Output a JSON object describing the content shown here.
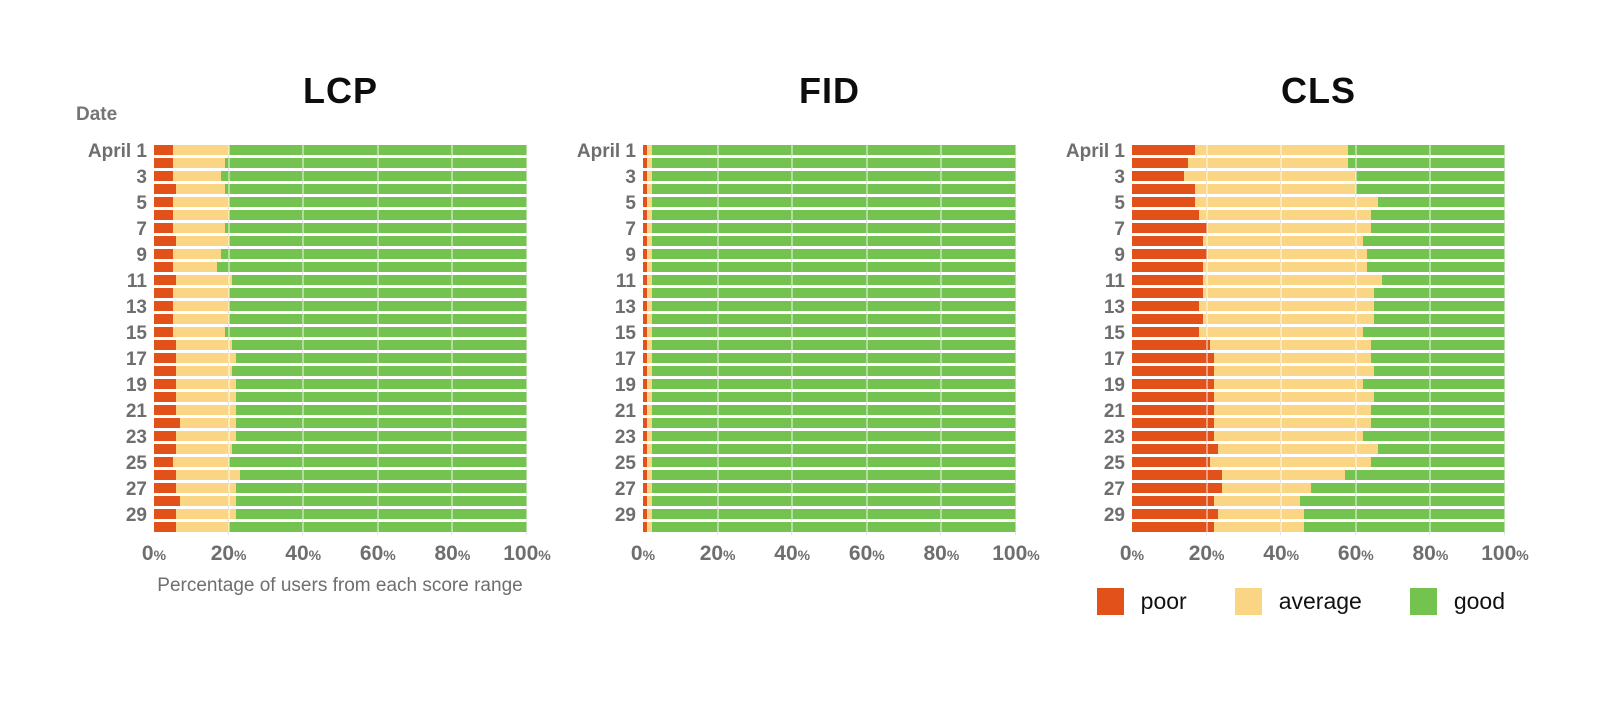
{
  "colors": {
    "poor": "#E2511A",
    "average": "#F9D584",
    "good": "#74C24F",
    "gridline": "#cccccc"
  },
  "legend": {
    "items": [
      {
        "label": "poor",
        "key": "poor"
      },
      {
        "label": "average",
        "key": "average"
      },
      {
        "label": "good",
        "key": "good"
      }
    ]
  },
  "chart_data": [
    {
      "type": "bar",
      "stacked": true,
      "horizontal": true,
      "units": "percent",
      "title": "LCP",
      "ylabel": "Date",
      "xlabel": "Percentage of users from each score range",
      "xrange": [
        0,
        100
      ],
      "xticks": [
        "0%",
        "20%",
        "40%",
        "60%",
        "80%",
        "100%"
      ],
      "yticks": [
        "April 1",
        "",
        "3",
        "",
        "5",
        "",
        "7",
        "",
        "9",
        "",
        "11",
        "",
        "13",
        "",
        "15",
        "",
        "17",
        "",
        "19",
        "",
        "21",
        "",
        "23",
        "",
        "25",
        "",
        "27",
        "",
        "29",
        ""
      ],
      "series": [
        {
          "name": "poor",
          "values": [
            5,
            5,
            5,
            6,
            5,
            5,
            5,
            6,
            5,
            5,
            6,
            5,
            5,
            5,
            5,
            6,
            6,
            6,
            6,
            6,
            6,
            7,
            6,
            6,
            5,
            6,
            6,
            7,
            6,
            6
          ]
        },
        {
          "name": "average",
          "values": [
            15,
            14,
            13,
            13,
            15,
            15,
            14,
            14,
            13,
            12,
            15,
            15,
            15,
            15,
            14,
            15,
            16,
            15,
            16,
            16,
            16,
            15,
            16,
            15,
            15,
            17,
            16,
            15,
            16,
            14
          ]
        },
        {
          "name": "good",
          "values": [
            80,
            81,
            82,
            81,
            80,
            80,
            81,
            80,
            82,
            83,
            79,
            80,
            80,
            80,
            81,
            79,
            78,
            79,
            78,
            78,
            78,
            78,
            78,
            79,
            80,
            77,
            78,
            78,
            78,
            80
          ]
        }
      ]
    },
    {
      "type": "bar",
      "stacked": true,
      "horizontal": true,
      "units": "percent",
      "title": "FID",
      "ylabel": "",
      "xlabel": "",
      "xrange": [
        0,
        100
      ],
      "xticks": [
        "0%",
        "20%",
        "40%",
        "60%",
        "80%",
        "100%"
      ],
      "yticks": [
        "April 1",
        "",
        "3",
        "",
        "5",
        "",
        "7",
        "",
        "9",
        "",
        "11",
        "",
        "13",
        "",
        "15",
        "",
        "17",
        "",
        "19",
        "",
        "21",
        "",
        "23",
        "",
        "25",
        "",
        "27",
        "",
        "29",
        ""
      ],
      "series": [
        {
          "name": "poor",
          "values": [
            1,
            1,
            1,
            1,
            1,
            1,
            1,
            1,
            1,
            1,
            1,
            1,
            1,
            1,
            1,
            1,
            1,
            1,
            1,
            1,
            1,
            1,
            1,
            1,
            1,
            1,
            1,
            1,
            1,
            1
          ]
        },
        {
          "name": "average",
          "values": [
            1.5,
            1.5,
            1.5,
            1.5,
            1.5,
            1.5,
            1.5,
            1.5,
            1.5,
            1.5,
            1.5,
            1.5,
            1.5,
            1.5,
            1.5,
            1.5,
            1.5,
            1.5,
            1.5,
            1.5,
            1.5,
            1.5,
            1.5,
            1.5,
            1.5,
            1.5,
            1.5,
            1.5,
            1.5,
            1.5
          ]
        },
        {
          "name": "good",
          "values": [
            97.5,
            97.5,
            97.5,
            97.5,
            97.5,
            97.5,
            97.5,
            97.5,
            97.5,
            97.5,
            97.5,
            97.5,
            97.5,
            97.5,
            97.5,
            97.5,
            97.5,
            97.5,
            97.5,
            97.5,
            97.5,
            97.5,
            97.5,
            97.5,
            97.5,
            97.5,
            97.5,
            97.5,
            97.5,
            97.5
          ]
        }
      ]
    },
    {
      "type": "bar",
      "stacked": true,
      "horizontal": true,
      "units": "percent",
      "title": "CLS",
      "ylabel": "",
      "xlabel": "",
      "xrange": [
        0,
        100
      ],
      "xticks": [
        "0%",
        "20%",
        "40%",
        "60%",
        "80%",
        "100%"
      ],
      "yticks": [
        "April 1",
        "",
        "3",
        "",
        "5",
        "",
        "7",
        "",
        "9",
        "",
        "11",
        "",
        "13",
        "",
        "15",
        "",
        "17",
        "",
        "19",
        "",
        "21",
        "",
        "23",
        "",
        "25",
        "",
        "27",
        "",
        "29",
        ""
      ],
      "series": [
        {
          "name": "poor",
          "values": [
            17,
            15,
            14,
            17,
            17,
            18,
            20,
            19,
            20,
            19,
            19,
            19,
            18,
            19,
            18,
            21,
            22,
            22,
            22,
            22,
            22,
            22,
            22,
            23,
            21,
            24,
            24,
            22,
            23,
            22
          ]
        },
        {
          "name": "average",
          "values": [
            41,
            43,
            46,
            43,
            49,
            46,
            44,
            43,
            43,
            44,
            48,
            46,
            47,
            46,
            44,
            43,
            42,
            43,
            40,
            43,
            42,
            42,
            40,
            43,
            43,
            33,
            24,
            23,
            23,
            24
          ]
        },
        {
          "name": "good",
          "values": [
            42,
            42,
            40,
            40,
            34,
            36,
            36,
            38,
            37,
            37,
            33,
            35,
            35,
            35,
            38,
            36,
            36,
            35,
            38,
            35,
            36,
            36,
            38,
            34,
            36,
            43,
            52,
            55,
            54,
            54
          ]
        }
      ]
    }
  ]
}
